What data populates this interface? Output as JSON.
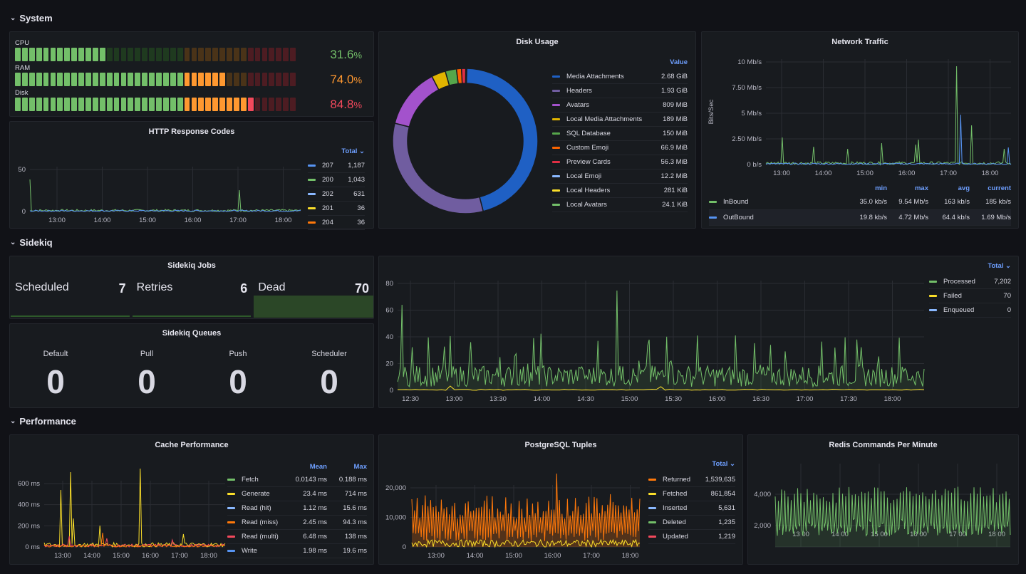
{
  "rows": {
    "system": "System",
    "sidekiq": "Sidekiq",
    "performance": "Performance"
  },
  "bargauge": {
    "items": [
      {
        "label": "CPU",
        "value": "31.6",
        "unit": "%",
        "fraction": 0.316,
        "color": "#73bf69"
      },
      {
        "label": "RAM",
        "value": "74.0",
        "unit": "%",
        "fraction": 0.74,
        "color": "#ff9830"
      },
      {
        "label": "Disk",
        "value": "84.8",
        "unit": "%",
        "fraction": 0.848,
        "color": "#f2495c"
      }
    ]
  },
  "http": {
    "title": "HTTP Response Codes",
    "col": "Total",
    "yticks": [
      "50",
      "0"
    ],
    "xticks": [
      "13:00",
      "14:00",
      "15:00",
      "16:00",
      "17:00",
      "18:00"
    ],
    "legend": [
      {
        "name": "207",
        "value": "1,187",
        "color": "#5794f2"
      },
      {
        "name": "200",
        "value": "1,043",
        "color": "#73bf69"
      },
      {
        "name": "202",
        "value": "631",
        "color": "#8ab8ff"
      },
      {
        "name": "201",
        "value": "36",
        "color": "#fade2a"
      },
      {
        "name": "204",
        "value": "36",
        "color": "#ff780a"
      }
    ]
  },
  "disk": {
    "title": "Disk Usage",
    "col": "Value",
    "legend": [
      {
        "name": "Media Attachments",
        "value": "2.68 GiB",
        "color": "#1f60c4",
        "bytes": 2877628000
      },
      {
        "name": "Headers",
        "value": "1.93 GiB",
        "color": "#705da0",
        "bytes": 2072321000
      },
      {
        "name": "Avatars",
        "value": "809 MiB",
        "color": "#a352cc",
        "bytes": 848298000
      },
      {
        "name": "Local Media Attachments",
        "value": "189 MiB",
        "color": "#e0b400",
        "bytes": 198181000
      },
      {
        "name": "SQL Database",
        "value": "150 MiB",
        "color": "#56a64b",
        "bytes": 157286000
      },
      {
        "name": "Custom Emoji",
        "value": "66.9 MiB",
        "color": "#fa6400",
        "bytes": 70150000
      },
      {
        "name": "Preview Cards",
        "value": "56.3 MiB",
        "color": "#e02f44",
        "bytes": 59035000
      },
      {
        "name": "Local Emoji",
        "value": "12.2 MiB",
        "color": "#8ab8ff",
        "bytes": 12792000
      },
      {
        "name": "Local Headers",
        "value": "281 KiB",
        "color": "#fade2a",
        "bytes": 287744
      },
      {
        "name": "Local Avatars",
        "value": "24.1 KiB",
        "color": "#73bf69",
        "bytes": 24678
      }
    ]
  },
  "net": {
    "title": "Network Traffic",
    "ylabel": "Bits/Sec",
    "yticks": [
      "10 Mb/s",
      "7.50 Mb/s",
      "5 Mb/s",
      "2.50 Mb/s",
      "0 b/s"
    ],
    "xticks": [
      "13:00",
      "14:00",
      "15:00",
      "16:00",
      "17:00",
      "18:00"
    ],
    "cols": [
      "min",
      "max",
      "avg",
      "current"
    ],
    "legend": [
      {
        "name": "InBound",
        "color": "#73bf69",
        "vals": [
          "35.0 kb/s",
          "9.54 Mb/s",
          "163 kb/s",
          "185 kb/s"
        ]
      },
      {
        "name": "OutBound",
        "color": "#5794f2",
        "vals": [
          "19.8 kb/s",
          "4.72 Mb/s",
          "64.4 kb/s",
          "1.69 Mb/s"
        ]
      }
    ]
  },
  "jobs": {
    "title": "Sidekiq Jobs",
    "stats": [
      {
        "label": "Scheduled",
        "value": "7"
      },
      {
        "label": "Retries",
        "value": "6"
      },
      {
        "label": "Dead",
        "value": "70"
      }
    ]
  },
  "queues": {
    "title": "Sidekiq Queues",
    "stats": [
      {
        "label": "Default",
        "value": "0"
      },
      {
        "label": "Pull",
        "value": "0"
      },
      {
        "label": "Push",
        "value": "0"
      },
      {
        "label": "Scheduler",
        "value": "0"
      }
    ]
  },
  "sidechart": {
    "col": "Total",
    "yticks": [
      "80",
      "60",
      "40",
      "20",
      "0"
    ],
    "xticks": [
      "12:30",
      "13:00",
      "13:30",
      "14:00",
      "14:30",
      "15:00",
      "15:30",
      "16:00",
      "16:30",
      "17:00",
      "17:30",
      "18:00"
    ],
    "legend": [
      {
        "name": "Processed",
        "value": "7,202",
        "color": "#73bf69"
      },
      {
        "name": "Failed",
        "value": "70",
        "color": "#fade2a"
      },
      {
        "name": "Enqueued",
        "value": "0",
        "color": "#8ab8ff"
      }
    ]
  },
  "cache": {
    "title": "Cache Performance",
    "cols": [
      "Mean",
      "Max"
    ],
    "yticks": [
      "600 ms",
      "400 ms",
      "200 ms",
      "0 ms"
    ],
    "xticks": [
      "13:00",
      "14:00",
      "15:00",
      "16:00",
      "17:00",
      "18:00"
    ],
    "legend": [
      {
        "name": "Fetch",
        "color": "#73bf69",
        "vals": [
          "0.0143 ms",
          "0.188 ms"
        ]
      },
      {
        "name": "Generate",
        "color": "#fade2a",
        "vals": [
          "23.4 ms",
          "714 ms"
        ]
      },
      {
        "name": "Read (hit)",
        "color": "#8ab8ff",
        "vals": [
          "1.12 ms",
          "15.6 ms"
        ]
      },
      {
        "name": "Read (miss)",
        "color": "#ff780a",
        "vals": [
          "2.45 ms",
          "94.3 ms"
        ]
      },
      {
        "name": "Read (multi)",
        "color": "#f2495c",
        "vals": [
          "6.48 ms",
          "138 ms"
        ]
      },
      {
        "name": "Write",
        "color": "#5794f2",
        "vals": [
          "1.98 ms",
          "19.6 ms"
        ]
      }
    ]
  },
  "pg": {
    "title": "PostgreSQL Tuples",
    "col": "Total",
    "yticks": [
      "20,000",
      "10,000",
      "0"
    ],
    "xticks": [
      "13:00",
      "14:00",
      "15:00",
      "16:00",
      "17:00",
      "18:00"
    ],
    "legend": [
      {
        "name": "Returned",
        "value": "1,539,635",
        "color": "#ff780a"
      },
      {
        "name": "Fetched",
        "value": "861,854",
        "color": "#fade2a"
      },
      {
        "name": "Inserted",
        "value": "5,631",
        "color": "#8ab8ff"
      },
      {
        "name": "Deleted",
        "value": "1,235",
        "color": "#73bf69"
      },
      {
        "name": "Updated",
        "value": "1,219",
        "color": "#f2495c"
      }
    ]
  },
  "redis": {
    "title": "Redis Commands Per Minute",
    "yticks": [
      "4,000",
      "2,000"
    ],
    "xticks": [
      "13:00",
      "14:00",
      "15:00",
      "16:00",
      "17:00",
      "18:00"
    ]
  }
}
